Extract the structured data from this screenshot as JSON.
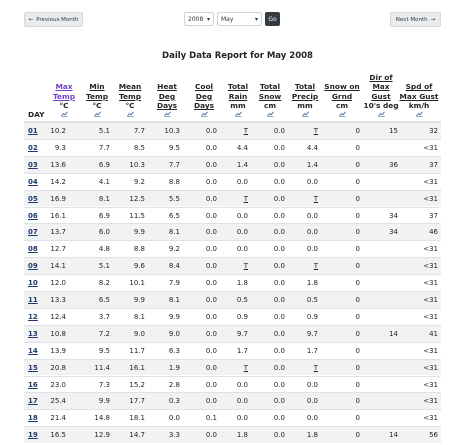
{
  "nav": {
    "prev_label": "Previous Month",
    "next_label": "Next Month",
    "year": "2008",
    "month": "May",
    "go_label": "Go"
  },
  "report": {
    "title": "Daily Data Report for May 2008",
    "day_label": "DAY",
    "columns": [
      {
        "label": [
          "Max",
          "Temp"
        ],
        "unit": "°C"
      },
      {
        "label": [
          "Min",
          "Temp"
        ],
        "unit": "°C"
      },
      {
        "label": [
          "Mean",
          "Temp"
        ],
        "unit": "°C"
      },
      {
        "label": [
          "Heat",
          "Deg",
          "Days"
        ],
        "unit": ""
      },
      {
        "label": [
          "Cool",
          "Deg",
          "Days"
        ],
        "unit": ""
      },
      {
        "label": [
          "Total",
          "Rain"
        ],
        "unit": "mm"
      },
      {
        "label": [
          "Total",
          "Snow"
        ],
        "unit": "cm"
      },
      {
        "label": [
          "Total",
          "Precip"
        ],
        "unit": "mm"
      },
      {
        "label": [
          "Snow on",
          "Grnd"
        ],
        "unit": "cm"
      },
      {
        "label": [
          "Dir of",
          "Max",
          "Gust"
        ],
        "unit": "10's deg"
      },
      {
        "label": [
          "Spd of",
          "Max Gust"
        ],
        "unit": "km/h"
      }
    ],
    "rows": [
      [
        "01",
        "10.2",
        "5.1",
        "7.7",
        "10.3",
        "0.0",
        "T",
        "0.0",
        "T",
        "0",
        "15",
        "32"
      ],
      [
        "02",
        "9.3",
        "7.7",
        "8.5",
        "9.5",
        "0.0",
        "4.4",
        "0.0",
        "4.4",
        "0",
        "",
        "<31"
      ],
      [
        "03",
        "13.6",
        "6.9",
        "10.3",
        "7.7",
        "0.0",
        "1.4",
        "0.0",
        "1.4",
        "0",
        "36",
        "37"
      ],
      [
        "04",
        "14.2",
        "4.1",
        "9.2",
        "8.8",
        "0.0",
        "0.0",
        "0.0",
        "0.0",
        "0",
        "",
        "<31"
      ],
      [
        "05",
        "16.9",
        "8.1",
        "12.5",
        "5.5",
        "0.0",
        "T",
        "0.0",
        "T",
        "0",
        "",
        "<31"
      ],
      [
        "06",
        "16.1",
        "6.9",
        "11.5",
        "6.5",
        "0.0",
        "0.0",
        "0.0",
        "0.0",
        "0",
        "34",
        "37"
      ],
      [
        "07",
        "13.7",
        "6.0",
        "9.9",
        "8.1",
        "0.0",
        "0.0",
        "0.0",
        "0.0",
        "0",
        "34",
        "46"
      ],
      [
        "08",
        "12.7",
        "4.8",
        "8.8",
        "9.2",
        "0.0",
        "0.0",
        "0.0",
        "0.0",
        "0",
        "",
        "<31"
      ],
      [
        "09",
        "14.1",
        "5.1",
        "9.6",
        "8.4",
        "0.0",
        "T",
        "0.0",
        "T",
        "0",
        "",
        "<31"
      ],
      [
        "10",
        "12.0",
        "8.2",
        "10.1",
        "7.9",
        "0.0",
        "1.8",
        "0.0",
        "1.8",
        "0",
        "",
        "<31"
      ],
      [
        "11",
        "13.3",
        "6.5",
        "9.9",
        "8.1",
        "0.0",
        "0.5",
        "0.0",
        "0.5",
        "0",
        "",
        "<31"
      ],
      [
        "12",
        "12.4",
        "3.7",
        "8.1",
        "9.9",
        "0.0",
        "0.9",
        "0.0",
        "0.9",
        "0",
        "",
        "<31"
      ],
      [
        "13",
        "10.8",
        "7.2",
        "9.0",
        "9.0",
        "0.0",
        "9.7",
        "0.0",
        "9.7",
        "0",
        "14",
        "41"
      ],
      [
        "14",
        "13.9",
        "9.5",
        "11.7",
        "6.3",
        "0.0",
        "1.7",
        "0.0",
        "1.7",
        "0",
        "",
        "<31"
      ],
      [
        "15",
        "20.8",
        "11.4",
        "16.1",
        "1.9",
        "0.0",
        "T",
        "0.0",
        "T",
        "0",
        "",
        "<31"
      ],
      [
        "16",
        "23.0",
        "7.3",
        "15.2",
        "2.8",
        "0.0",
        "0.0",
        "0.0",
        "0.0",
        "0",
        "",
        "<31"
      ],
      [
        "17",
        "25.4",
        "9.9",
        "17.7",
        "0.3",
        "0.0",
        "0.0",
        "0.0",
        "0.0",
        "0",
        "",
        "<31"
      ],
      [
        "18",
        "21.4",
        "14.8",
        "18.1",
        "0.0",
        "0.1",
        "0.0",
        "0.0",
        "0.0",
        "0",
        "",
        "<31"
      ],
      [
        "19",
        "16.5",
        "12.9",
        "14.7",
        "3.3",
        "0.0",
        "1.8",
        "0.0",
        "1.8",
        "0",
        "14",
        "56"
      ]
    ]
  }
}
